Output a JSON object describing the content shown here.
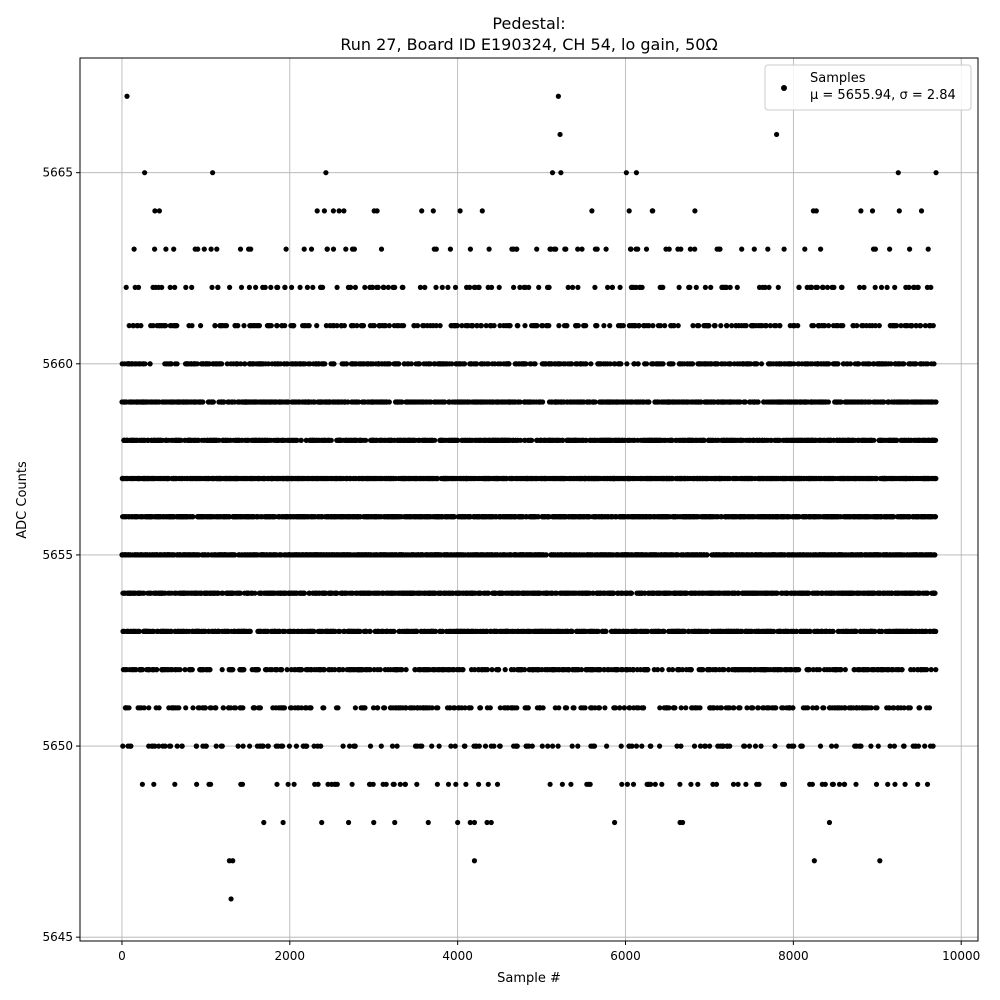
{
  "chart_data": {
    "type": "scatter",
    "title_line1": "Pedestal:",
    "title_line2": "Run 27, Board ID E190324, CH 54, lo gain, 50Ω",
    "xlabel": "Sample #",
    "ylabel": "ADC Counts",
    "xlim": [
      -500,
      10200
    ],
    "ylim": [
      5644.9,
      5668.0
    ],
    "xticks": [
      0,
      2000,
      4000,
      6000,
      8000,
      10000
    ],
    "xtick_labels": [
      "0",
      "2000",
      "4000",
      "6000",
      "8000",
      "10000"
    ],
    "yticks": [
      5645,
      5650,
      5655,
      5660,
      5665
    ],
    "ytick_labels": [
      "5645",
      "5650",
      "5655",
      "5660",
      "5665"
    ],
    "grid": true,
    "legend": {
      "placement": "top-right",
      "label": "Samples",
      "stats": "μ = 5655.94, σ = 2.84"
    },
    "n_samples": 9700,
    "mean": 5655.94,
    "sigma": 2.84,
    "marker_color": "#000000",
    "outliers": [
      [
        60,
        5667
      ],
      [
        5200,
        5667
      ],
      [
        5220,
        5666
      ],
      [
        7800,
        5666
      ],
      [
        270,
        5665
      ],
      [
        1080,
        5665
      ],
      [
        2430,
        5665
      ],
      [
        5130,
        5665
      ],
      [
        5230,
        5665
      ],
      [
        6010,
        5665
      ],
      [
        6130,
        5665
      ],
      [
        9250,
        5665
      ],
      [
        9700,
        5665
      ],
      [
        1300,
        5646
      ],
      [
        1280,
        5647
      ],
      [
        1320,
        5647
      ],
      [
        4200,
        5647
      ],
      [
        8250,
        5647
      ],
      [
        9030,
        5647
      ],
      [
        1690,
        5648
      ],
      [
        1920,
        5648
      ],
      [
        2380,
        5648
      ],
      [
        2700,
        5648
      ],
      [
        3000,
        5648
      ],
      [
        3250,
        5648
      ],
      [
        3650,
        5648
      ],
      [
        4000,
        5648
      ],
      [
        4150,
        5648
      ],
      [
        4200,
        5648
      ],
      [
        4350,
        5648
      ],
      [
        4400,
        5648
      ],
      [
        5870,
        5648
      ],
      [
        6650,
        5648
      ],
      [
        6680,
        5648
      ],
      [
        8430,
        5648
      ]
    ]
  }
}
